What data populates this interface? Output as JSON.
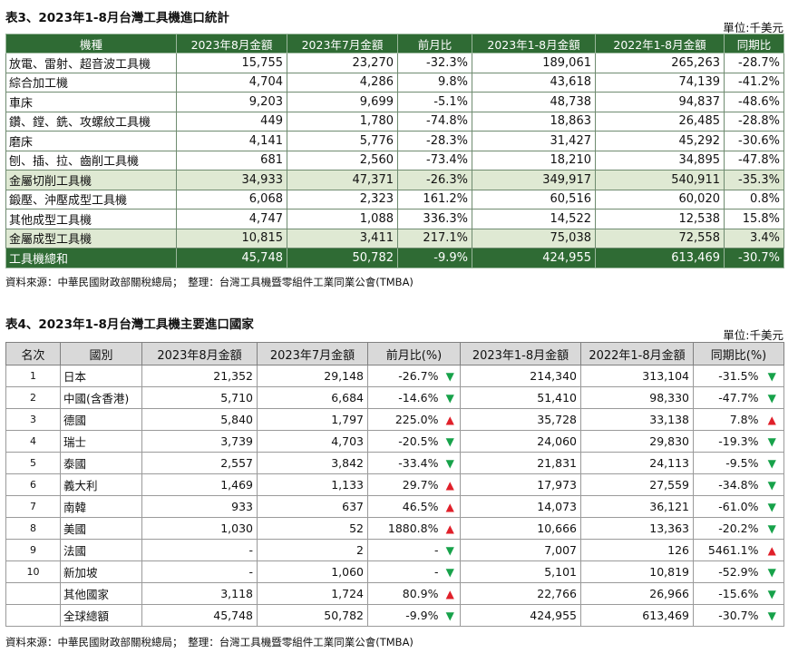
{
  "table3": {
    "title": "表3、2023年1-8月台灣工具機進口統計",
    "unit": "單位:千美元",
    "headers": [
      "機種",
      "2023年8月金額",
      "2023年7月金額",
      "前月比",
      "2023年1-8月金額",
      "2022年1-8月金額",
      "同期比"
    ],
    "rows": [
      {
        "type": "normal",
        "cells": [
          "放電、雷射、超音波工具機",
          "15,755",
          "23,270",
          "-32.3%",
          "189,061",
          "265,263",
          "-28.7%"
        ]
      },
      {
        "type": "normal",
        "cells": [
          "綜合加工機",
          "4,704",
          "4,286",
          "9.8%",
          "43,618",
          "74,139",
          "-41.2%"
        ]
      },
      {
        "type": "normal",
        "cells": [
          "車床",
          "9,203",
          "9,699",
          "-5.1%",
          "48,738",
          "94,837",
          "-48.6%"
        ]
      },
      {
        "type": "normal",
        "cells": [
          "鑽、鏜、銑、攻螺紋工具機",
          "449",
          "1,780",
          "-74.8%",
          "18,863",
          "26,485",
          "-28.8%"
        ]
      },
      {
        "type": "normal",
        "cells": [
          "磨床",
          "4,141",
          "5,776",
          "-28.3%",
          "31,427",
          "45,292",
          "-30.6%"
        ]
      },
      {
        "type": "normal",
        "cells": [
          "刨、插、拉、齒削工具機",
          "681",
          "2,560",
          "-73.4%",
          "18,210",
          "34,895",
          "-47.8%"
        ]
      },
      {
        "type": "subtotal",
        "cells": [
          "金屬切削工具機",
          "34,933",
          "47,371",
          "-26.3%",
          "349,917",
          "540,911",
          "-35.3%"
        ]
      },
      {
        "type": "normal",
        "cells": [
          "鍛壓、沖壓成型工具機",
          "6,068",
          "2,323",
          "161.2%",
          "60,516",
          "60,020",
          "0.8%"
        ]
      },
      {
        "type": "normal",
        "cells": [
          "其他成型工具機",
          "4,747",
          "1,088",
          "336.3%",
          "14,522",
          "12,538",
          "15.8%"
        ]
      },
      {
        "type": "subtotal",
        "cells": [
          "金屬成型工具機",
          "10,815",
          "3,411",
          "217.1%",
          "75,038",
          "72,558",
          "3.4%"
        ]
      },
      {
        "type": "total",
        "cells": [
          "工具機總和",
          "45,748",
          "50,782",
          "-9.9%",
          "424,955",
          "613,469",
          "-30.7%"
        ]
      }
    ],
    "source": "資料來源：中華民國財政部關稅總局；　整理：台灣工具機暨零組件工業同業公會(TMBA)"
  },
  "table4": {
    "title": "表4、2023年1-8月台灣工具機主要進口國家",
    "unit": "單位:千美元",
    "headers": [
      "名次",
      "國別",
      "2023年8月金額",
      "2023年7月金額",
      "前月比(%)",
      "2023年1-8月金額",
      "2022年1-8月金額",
      "同期比(%)"
    ],
    "rows": [
      {
        "rank": "1",
        "country": "日本",
        "aug": "21,352",
        "jul": "29,148",
        "mom": "-26.7%",
        "mom_dir": "down",
        "ytd23": "214,340",
        "ytd22": "313,104",
        "yoy": "-31.5%",
        "yoy_dir": "down"
      },
      {
        "rank": "2",
        "country": "中國(含香港)",
        "aug": "5,710",
        "jul": "6,684",
        "mom": "-14.6%",
        "mom_dir": "down",
        "ytd23": "51,410",
        "ytd22": "98,330",
        "yoy": "-47.7%",
        "yoy_dir": "down"
      },
      {
        "rank": "3",
        "country": "德國",
        "aug": "5,840",
        "jul": "1,797",
        "mom": "225.0%",
        "mom_dir": "up",
        "ytd23": "35,728",
        "ytd22": "33,138",
        "yoy": "7.8%",
        "yoy_dir": "up"
      },
      {
        "rank": "4",
        "country": "瑞士",
        "aug": "3,739",
        "jul": "4,703",
        "mom": "-20.5%",
        "mom_dir": "down",
        "ytd23": "24,060",
        "ytd22": "29,830",
        "yoy": "-19.3%",
        "yoy_dir": "down"
      },
      {
        "rank": "5",
        "country": "泰國",
        "aug": "2,557",
        "jul": "3,842",
        "mom": "-33.4%",
        "mom_dir": "down",
        "ytd23": "21,831",
        "ytd22": "24,113",
        "yoy": "-9.5%",
        "yoy_dir": "down"
      },
      {
        "rank": "6",
        "country": "義大利",
        "aug": "1,469",
        "jul": "1,133",
        "mom": "29.7%",
        "mom_dir": "up",
        "ytd23": "17,973",
        "ytd22": "27,559",
        "yoy": "-34.8%",
        "yoy_dir": "down"
      },
      {
        "rank": "7",
        "country": "南韓",
        "aug": "933",
        "jul": "637",
        "mom": "46.5%",
        "mom_dir": "up",
        "ytd23": "14,073",
        "ytd22": "36,121",
        "yoy": "-61.0%",
        "yoy_dir": "down"
      },
      {
        "rank": "8",
        "country": "美國",
        "aug": "1,030",
        "jul": "52",
        "mom": "1880.8%",
        "mom_dir": "up",
        "ytd23": "10,666",
        "ytd22": "13,363",
        "yoy": "-20.2%",
        "yoy_dir": "down"
      },
      {
        "rank": "9",
        "country": "法國",
        "aug": "-",
        "jul": "2",
        "mom": "-",
        "mom_dir": "down",
        "ytd23": "7,007",
        "ytd22": "126",
        "yoy": "5461.1%",
        "yoy_dir": "up"
      },
      {
        "rank": "10",
        "country": "新加坡",
        "aug": "-",
        "jul": "1,060",
        "mom": "-",
        "mom_dir": "down",
        "ytd23": "5,101",
        "ytd22": "10,819",
        "yoy": "-52.9%",
        "yoy_dir": "down"
      },
      {
        "rank": "",
        "country": "其他國家",
        "aug": "3,118",
        "jul": "1,724",
        "mom": "80.9%",
        "mom_dir": "up",
        "ytd23": "22,766",
        "ytd22": "26,966",
        "yoy": "-15.6%",
        "yoy_dir": "down"
      },
      {
        "rank": "",
        "country": "全球總額",
        "aug": "45,748",
        "jul": "50,782",
        "mom": "-9.9%",
        "mom_dir": "down",
        "ytd23": "424,955",
        "ytd22": "613,469",
        "yoy": "-30.7%",
        "yoy_dir": "down"
      }
    ],
    "source": "資料來源：中華民國財政部關稅總局；　整理：台灣工具機暨零組件工業同業公會(TMBA)"
  },
  "colors": {
    "up": "#e0202a",
    "down": "#17a24a",
    "header_green": "#2f6b34",
    "subtotal": "#dfe9d3"
  },
  "icons": {
    "up": "triangle-up-icon",
    "down": "triangle-down-icon"
  }
}
